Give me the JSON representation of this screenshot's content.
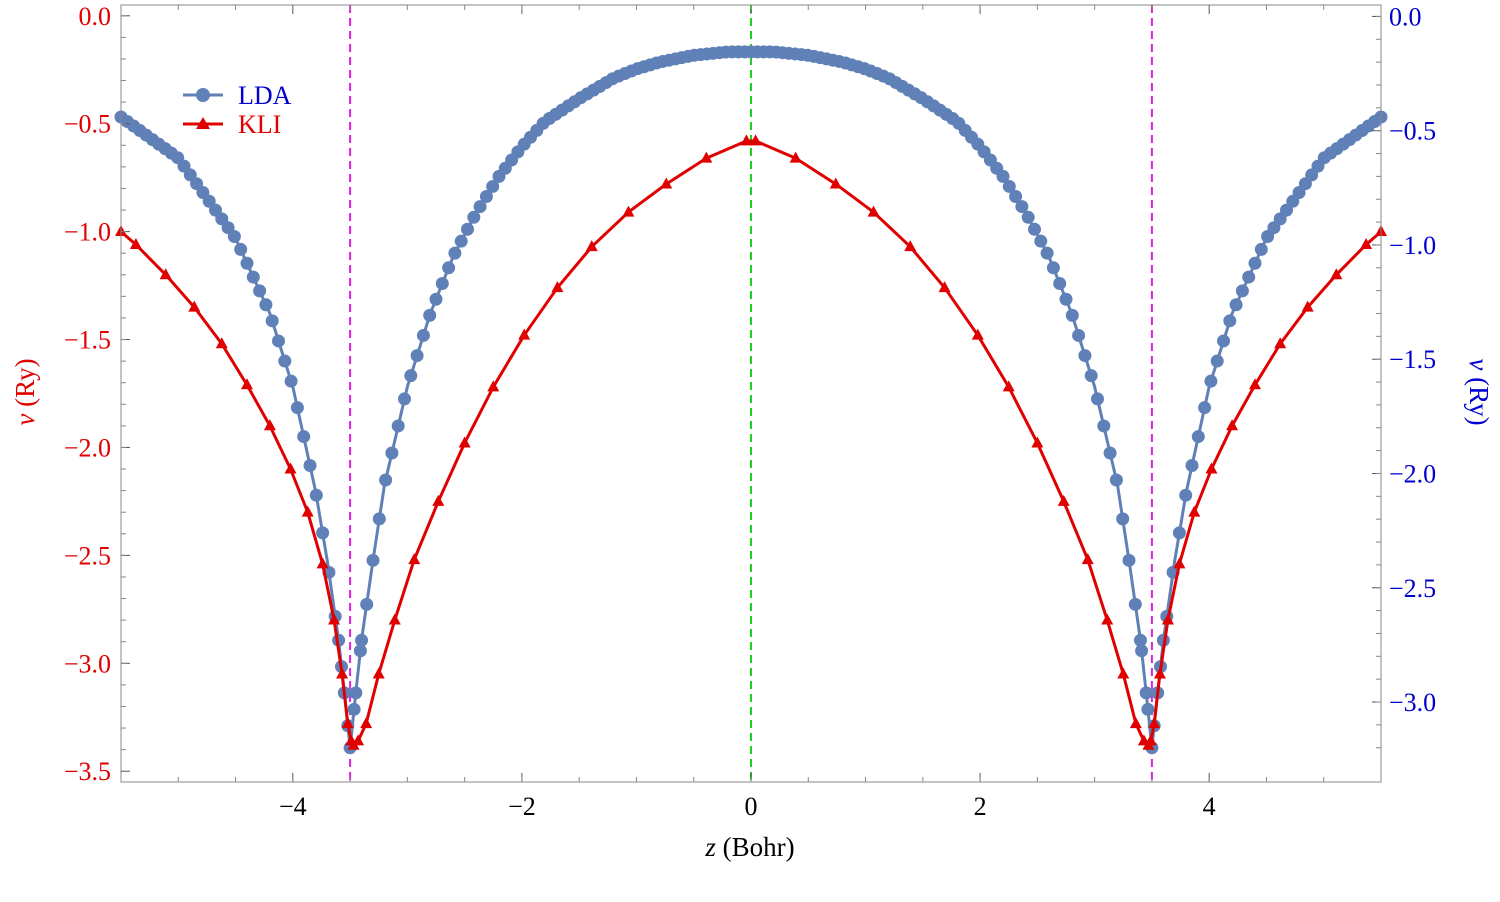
{
  "chart_data": {
    "type": "line",
    "xlabel": {
      "italic": "z",
      "rest": " (Bohr)"
    },
    "ylabel_left": {
      "italic": "v",
      "rest": " (Ry)"
    },
    "ylabel_right": {
      "italic": "v",
      "rest": " (Ry)"
    },
    "xlim": [
      -5.5,
      5.5
    ],
    "ylim_left": [
      -3.55,
      0.05
    ],
    "ylim_right": [
      -3.35,
      0.05
    ],
    "x_ticks": [
      -4,
      -2,
      0,
      2,
      4
    ],
    "x_tick_labels": [
      "−4",
      "−2",
      "0",
      "2",
      "4"
    ],
    "y_left_ticks": [
      0.0,
      -0.5,
      -1.0,
      -1.5,
      -2.0,
      -2.5,
      -3.0,
      -3.5
    ],
    "y_left_tick_labels": [
      "0.0",
      "−0.5",
      "−1.0",
      "−1.5",
      "−2.0",
      "−2.5",
      "−3.0",
      "−3.5"
    ],
    "y_right_ticks": [
      0.0,
      -0.5,
      -1.0,
      -1.5,
      -2.0,
      -2.5,
      -3.0
    ],
    "y_right_tick_labels": [
      "0.0",
      "−0.5",
      "−1.0",
      "−1.5",
      "−2.0",
      "−2.5",
      "−3.0"
    ],
    "vertical_lines": [
      {
        "x": -3.5,
        "color": "#e020e0",
        "style": "dashed"
      },
      {
        "x": 0.0,
        "color": "#20d020",
        "style": "dashed"
      },
      {
        "x": 3.5,
        "color": "#e020e0",
        "style": "dashed"
      }
    ],
    "legend_position": "top-left",
    "grid": false,
    "colors": {
      "left_axis": "#e00000",
      "right_axis": "#0000d0",
      "lda": "#6080b8",
      "kli": "#e00000"
    },
    "series": [
      {
        "name": "LDA",
        "axis": "right",
        "marker": "circle",
        "label_color": "#0000d0",
        "x": [
          -5.5,
          -5.0,
          -4.5,
          -4.2,
          -4.0,
          -3.8,
          -3.7,
          -3.6,
          -3.55,
          -3.5,
          -3.45,
          -3.4,
          -3.3,
          -3.2,
          -3.0,
          -2.8,
          -2.6,
          -2.4,
          -2.2,
          -2.0,
          -1.8,
          -1.5,
          -1.2,
          -1.0,
          -0.8,
          -0.5,
          -0.2,
          0.0,
          0.2,
          0.5,
          0.8,
          1.0,
          1.2,
          1.5,
          1.8,
          2.0,
          2.2,
          2.4,
          2.6,
          2.8,
          3.0,
          3.2,
          3.3,
          3.4,
          3.45,
          3.5,
          3.55,
          3.6,
          3.7,
          3.8,
          4.0,
          4.2,
          4.5,
          5.0,
          5.5
        ],
        "y": [
          -0.44,
          -0.62,
          -0.97,
          -1.3,
          -1.62,
          -2.08,
          -2.38,
          -2.73,
          -2.96,
          -3.2,
          -2.96,
          -2.73,
          -2.38,
          -2.05,
          -1.62,
          -1.3,
          -1.05,
          -0.86,
          -0.7,
          -0.57,
          -0.46,
          -0.36,
          -0.27,
          -0.23,
          -0.2,
          -0.17,
          -0.155,
          -0.155,
          -0.155,
          -0.17,
          -0.2,
          -0.23,
          -0.27,
          -0.36,
          -0.46,
          -0.57,
          -0.7,
          -0.86,
          -1.05,
          -1.3,
          -1.62,
          -2.05,
          -2.38,
          -2.73,
          -2.96,
          -3.2,
          -2.96,
          -2.73,
          -2.38,
          -2.08,
          -1.62,
          -1.3,
          -0.97,
          -0.62,
          -0.44
        ],
        "marker_density": 200
      },
      {
        "name": "KLI",
        "axis": "left",
        "marker": "triangle",
        "label_color": "#e00000",
        "x": [
          -5.5,
          -5.37,
          -5.11,
          -4.86,
          -4.62,
          -4.4,
          -4.2,
          -4.02,
          -3.87,
          -3.74,
          -3.64,
          -3.57,
          -3.52,
          -3.49,
          -3.47,
          -3.43,
          -3.36,
          -3.25,
          -3.11,
          -2.94,
          -2.73,
          -2.5,
          -2.25,
          -1.98,
          -1.69,
          -1.39,
          -1.07,
          -0.74,
          -0.39,
          -0.04,
          0.04,
          0.39,
          0.74,
          1.07,
          1.39,
          1.69,
          1.98,
          2.25,
          2.5,
          2.73,
          2.94,
          3.11,
          3.25,
          3.36,
          3.43,
          3.47,
          3.49,
          3.52,
          3.57,
          3.64,
          3.74,
          3.87,
          4.02,
          4.2,
          4.4,
          4.62,
          4.86,
          5.11,
          5.37,
          5.5
        ],
        "y": [
          -1.0,
          -1.06,
          -1.2,
          -1.35,
          -1.52,
          -1.71,
          -1.9,
          -2.1,
          -2.3,
          -2.54,
          -2.8,
          -3.05,
          -3.28,
          -3.36,
          -3.38,
          -3.36,
          -3.28,
          -3.05,
          -2.8,
          -2.52,
          -2.25,
          -1.98,
          -1.72,
          -1.48,
          -1.26,
          -1.07,
          -0.91,
          -0.78,
          -0.66,
          -0.58,
          -0.58,
          -0.66,
          -0.78,
          -0.91,
          -1.07,
          -1.26,
          -1.48,
          -1.72,
          -1.98,
          -2.25,
          -2.52,
          -2.8,
          -3.05,
          -3.28,
          -3.36,
          -3.38,
          -3.36,
          -3.28,
          -3.05,
          -2.8,
          -2.54,
          -2.3,
          -2.1,
          -1.9,
          -1.71,
          -1.52,
          -1.35,
          -1.2,
          -1.06,
          -1.0
        ]
      }
    ]
  }
}
